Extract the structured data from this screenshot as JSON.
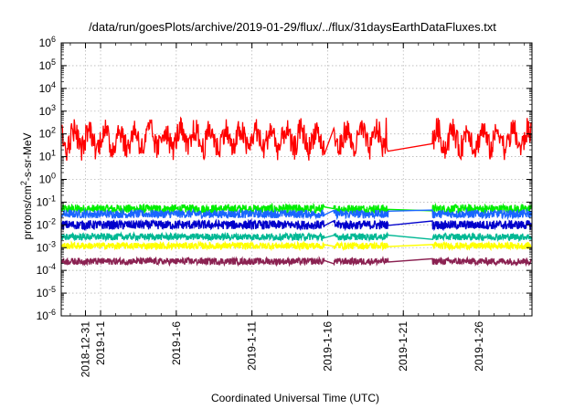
{
  "chart_data": {
    "type": "line",
    "title": "/data/run/goesPlots/archive/2019-01-29/flux/../flux/31daysEarthDataFluxes.txt",
    "xlabel": "Coordinated Universal Time (UTC)",
    "ylabel_parts": {
      "pre": "protons/cm",
      "sup": "2",
      "post": "-s-sr-MeV"
    },
    "yscale": "log",
    "ylim_exp": [
      -6,
      6
    ],
    "ytick_exps": [
      "-6",
      "-5",
      "-4",
      "-3",
      "-2",
      "-1",
      "0",
      "1",
      "2",
      "3",
      "4",
      "5",
      "6"
    ],
    "ytick_base": "10",
    "xlim_days": [
      -1.6,
      29.5
    ],
    "xticks": [
      {
        "label": "2018-12-31",
        "day": 0
      },
      {
        "label": "2019-1-1",
        "day": 1
      },
      {
        "label": "2019-1-6",
        "day": 6
      },
      {
        "label": "2019-1-11",
        "day": 11
      },
      {
        "label": "2019-1-16",
        "day": 16
      },
      {
        "label": "2019-1-21",
        "day": 21
      },
      {
        "label": "2019-1-26",
        "day": 26
      }
    ],
    "data_gaps_days": [
      [
        15.8,
        16.4
      ],
      [
        20.0,
        22.9
      ]
    ],
    "grid": true,
    "series": [
      {
        "color": "#ff0000",
        "baseline": 60,
        "spread_log": 0.55
      },
      {
        "color": "#00ee00",
        "baseline": 0.05,
        "spread_log": 0.2
      },
      {
        "color": "#1a66ff",
        "baseline": 0.03,
        "spread_log": 0.18
      },
      {
        "color": "#0000cc",
        "baseline": 0.01,
        "spread_log": 0.2
      },
      {
        "color": "#00b894",
        "baseline": 0.003,
        "spread_log": 0.15
      },
      {
        "color": "#ffff00",
        "baseline": 0.0012,
        "spread_log": 0.15
      },
      {
        "color": "#8b2252",
        "baseline": 0.00025,
        "spread_log": 0.15
      }
    ]
  }
}
